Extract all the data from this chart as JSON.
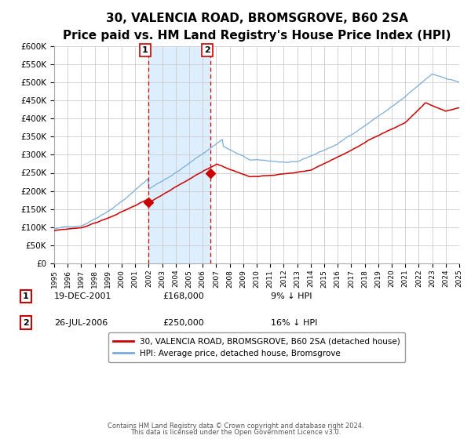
{
  "title": "30, VALENCIA ROAD, BROMSGROVE, B60 2SA",
  "subtitle": "Price paid vs. HM Land Registry's House Price Index (HPI)",
  "title_fontsize": 11,
  "subtitle_fontsize": 9,
  "background_color": "#ffffff",
  "plot_bg_color": "#ffffff",
  "grid_color": "#cccccc",
  "hpi_line_color": "#7aaddc",
  "price_line_color": "#cc0000",
  "shade_color": "#ddeeff",
  "vline_color": "#cc0000",
  "ylim": [
    0,
    600000
  ],
  "yticks": [
    0,
    50000,
    100000,
    150000,
    200000,
    250000,
    300000,
    350000,
    400000,
    450000,
    500000,
    550000,
    600000
  ],
  "sale1_date_label": "19-DEC-2001",
  "sale1_price": 168000,
  "sale1_hpi_pct": "9% ↓ HPI",
  "sale1_year": 2001.97,
  "sale2_date_label": "26-JUL-2006",
  "sale2_price": 250000,
  "sale2_hpi_pct": "16% ↓ HPI",
  "sale2_year": 2006.57,
  "legend_label1": "30, VALENCIA ROAD, BROMSGROVE, B60 2SA (detached house)",
  "legend_label2": "HPI: Average price, detached house, Bromsgrove",
  "footer1": "Contains HM Land Registry data © Crown copyright and database right 2024.",
  "footer2": "This data is licensed under the Open Government Licence v3.0.",
  "xmin": 1995,
  "xmax": 2025
}
